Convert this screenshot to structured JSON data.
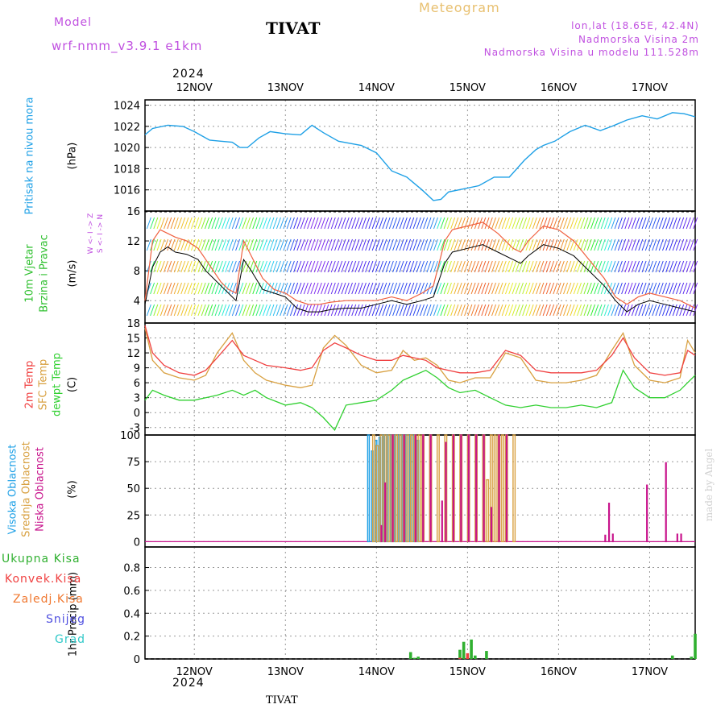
{
  "header": {
    "model_label": "Model",
    "model_name": "wrf-nmm_v3.9.1  e1km",
    "title": "TIVAT",
    "subtitle": "Meteogram",
    "lonlat": "lon,lat (18.65E, 42.4N)",
    "elev": "Nadmorska Visina 2m",
    "model_elev": "Nadmorska Visina u modelu 111.528m",
    "footer": "TIVAT",
    "credit": "made by Angel",
    "year_top": "2024",
    "year_bottom": "2024"
  },
  "colors": {
    "pressure": "#1ea0e6",
    "temp2m": "#f04040",
    "sfc": "#d8a040",
    "dewpt": "#30d030",
    "high_cloud": "#1ea0e6",
    "mid_cloud": "#d8a040",
    "low_cloud": "#c8148c",
    "total_precip": "#30b030",
    "convective": "#f04040",
    "freezing": "#f07830",
    "snow": "#5050e0",
    "hail": "#30c8c8",
    "wind_label": "#30c030",
    "dir_label": "#c050e0"
  },
  "labels": {
    "pressure_title": "Pritisak na nivou mora",
    "pressure_unit": "(hPa)",
    "wind_title1": "10m Vjetar",
    "wind_title2": "Brzina i Pravac",
    "wind_unit": "(m/s)",
    "wind_dirs": "W  <-  I  ->  Z",
    "wind_dirs2": "S  <-  I  ->  N",
    "temp_title1": "2m Temp",
    "temp_title2": "SFC Temp",
    "temp_title3": "dewpt Temp",
    "temp_unit": "(C)",
    "cloud_title1": "Visoka Oblacnost",
    "cloud_title2": "Srednja Oblacnost",
    "cloud_title3": "Niska Oblacnost",
    "cloud_unit": "(%)",
    "precip_title": "1hr Precip (mm)",
    "precip_legend": [
      "Ukupna Kisa",
      "Konvek.Kisa",
      "Zaledj.Kisa",
      "Snijeg",
      "Grad"
    ]
  },
  "chart_data": {
    "type": "meteogram",
    "x_labels": [
      "12NOV",
      "13NOV",
      "14NOV",
      "15NOV",
      "16NOV",
      "17NOV"
    ],
    "x_hours_range": [
      -13,
      132
    ],
    "pressure": {
      "ylabel": "(hPa)",
      "ylim": [
        1014,
        1024.5
      ],
      "ticks": [
        1016,
        1018,
        1020,
        1022,
        1024
      ],
      "hours": [
        -13,
        -11,
        -7,
        -3,
        0,
        4,
        7,
        10,
        12,
        14,
        17,
        20,
        24,
        28,
        31,
        34,
        38,
        44,
        48,
        52,
        56,
        60,
        63,
        65,
        67,
        71,
        75,
        79,
        83,
        87,
        90,
        92,
        95,
        99,
        103,
        107,
        110,
        114,
        118,
        122,
        126,
        129,
        132
      ],
      "values": [
        1021.2,
        1021.8,
        1022.1,
        1022.0,
        1021.5,
        1020.7,
        1020.6,
        1020.5,
        1020.0,
        1020.0,
        1020.9,
        1021.5,
        1021.3,
        1021.2,
        1022.1,
        1021.4,
        1020.6,
        1020.2,
        1019.5,
        1017.8,
        1017.2,
        1016.0,
        1015.0,
        1015.1,
        1015.8,
        1016.1,
        1016.4,
        1017.2,
        1017.2,
        1018.8,
        1019.8,
        1020.2,
        1020.6,
        1021.5,
        1022.1,
        1021.6,
        1022.0,
        1022.6,
        1023.0,
        1022.7,
        1023.3,
        1023.2,
        1022.9
      ]
    },
    "wind": {
      "ylabel": "(m/s)",
      "ylim": [
        1,
        16
      ],
      "ticks": [
        4,
        8,
        12,
        16
      ],
      "hours": [
        -13,
        -11,
        -9,
        -7,
        -5,
        -2,
        1,
        3,
        5,
        7,
        9,
        11,
        13,
        15,
        18,
        21,
        24,
        27,
        30,
        33,
        36,
        40,
        44,
        48,
        52,
        56,
        60,
        63,
        66,
        68,
        72,
        76,
        80,
        84,
        86,
        88,
        92,
        96,
        100,
        104,
        108,
        111,
        114,
        117,
        120,
        124,
        128,
        132
      ],
      "mean": [
        3.5,
        8.5,
        10.5,
        11.2,
        10.5,
        10.2,
        9.5,
        8.0,
        7.0,
        6.0,
        5.0,
        4.0,
        9.5,
        8.0,
        5.5,
        5.0,
        4.5,
        3.0,
        2.5,
        2.5,
        2.8,
        3.0,
        3.0,
        3.5,
        4.0,
        3.5,
        4.0,
        4.5,
        9.0,
        10.5,
        11.0,
        11.5,
        10.5,
        9.5,
        9.0,
        10.0,
        11.5,
        11.0,
        10.0,
        8.0,
        6.0,
        4.0,
        2.5,
        3.5,
        4.0,
        3.5,
        3.0,
        2.5
      ],
      "gust": [
        4.0,
        12.0,
        13.5,
        13.0,
        12.5,
        12.0,
        11.0,
        9.5,
        8.0,
        6.5,
        5.5,
        5.0,
        12.0,
        10.0,
        7.0,
        5.5,
        5.0,
        4.0,
        3.5,
        3.5,
        3.8,
        4.0,
        4.0,
        4.0,
        4.5,
        4.0,
        5.0,
        6.0,
        12.0,
        13.5,
        14.0,
        14.5,
        13.0,
        11.0,
        10.5,
        12.0,
        14.0,
        13.5,
        12.0,
        9.5,
        7.0,
        4.5,
        3.5,
        4.5,
        5.0,
        4.5,
        4.0,
        3.0
      ]
    },
    "temperature": {
      "ylabel": "(C)",
      "ylim": [
        -4.5,
        18
      ],
      "ticks": [
        -3,
        0,
        3,
        6,
        9,
        12,
        15,
        18
      ],
      "hours": [
        -13,
        -11,
        -8,
        -4,
        0,
        3,
        6,
        10,
        13,
        16,
        19,
        24,
        28,
        31,
        34,
        37,
        40,
        44,
        48,
        52,
        55,
        58,
        61,
        64,
        67,
        70,
        74,
        78,
        82,
        86,
        90,
        94,
        98,
        102,
        106,
        110,
        113,
        116,
        120,
        124,
        128,
        130,
        132
      ],
      "t2m": [
        17.5,
        12.0,
        9.5,
        8.0,
        7.5,
        8.5,
        11.0,
        14.5,
        11.5,
        10.5,
        9.5,
        9.0,
        8.5,
        9.0,
        12.5,
        14.0,
        13.0,
        11.5,
        10.5,
        10.5,
        11.5,
        11.0,
        10.5,
        9.0,
        8.5,
        8.0,
        8.0,
        8.5,
        12.5,
        11.5,
        8.5,
        8.0,
        8.0,
        8.0,
        8.5,
        11.5,
        15.0,
        11.0,
        8.0,
        7.5,
        8.0,
        12.5,
        11.5
      ],
      "sfc": [
        17.0,
        10.5,
        8.0,
        7.0,
        6.5,
        7.5,
        12.0,
        16.0,
        10.5,
        8.0,
        6.5,
        5.5,
        5.0,
        5.5,
        13.0,
        15.5,
        13.5,
        9.5,
        8.0,
        8.5,
        12.5,
        10.5,
        11.0,
        9.5,
        6.5,
        6.0,
        7.0,
        7.0,
        12.0,
        11.0,
        6.5,
        6.0,
        6.0,
        6.5,
        7.5,
        12.5,
        16.0,
        9.5,
        6.5,
        6.0,
        7.0,
        14.5,
        12.0
      ],
      "dewpt": [
        2.5,
        4.5,
        3.5,
        2.5,
        2.5,
        3.0,
        3.5,
        4.5,
        3.5,
        4.5,
        3.0,
        1.5,
        2.0,
        1.0,
        -1.0,
        -3.5,
        1.5,
        2.0,
        2.5,
        4.5,
        6.5,
        7.5,
        8.5,
        7.0,
        5.0,
        4.0,
        4.5,
        3.0,
        1.5,
        1.0,
        1.5,
        1.0,
        1.0,
        1.5,
        1.0,
        2.0,
        8.5,
        5.0,
        3.0,
        3.0,
        4.5,
        6.0,
        7.5
      ]
    },
    "clouds": {
      "ylabel": "(%)",
      "ylim": [
        -5,
        100
      ],
      "ticks": [
        0,
        25,
        50,
        75,
        100
      ],
      "high": [
        [
          46,
          100
        ],
        [
          47,
          85
        ],
        [
          48,
          95
        ],
        [
          49,
          98
        ],
        [
          50,
          100
        ],
        [
          51,
          100
        ],
        [
          52,
          100
        ],
        [
          53,
          100
        ],
        [
          54,
          100
        ],
        [
          55,
          100
        ],
        [
          56,
          100
        ],
        [
          57,
          100
        ],
        [
          58,
          100
        ],
        [
          59,
          95
        ]
      ],
      "mid": [
        [
          47,
          100
        ],
        [
          48,
          90
        ],
        [
          49,
          100
        ],
        [
          50,
          100
        ],
        [
          51,
          100
        ],
        [
          52,
          100
        ],
        [
          53,
          100
        ],
        [
          54,
          100
        ],
        [
          55,
          100
        ],
        [
          56,
          100
        ],
        [
          57,
          100
        ],
        [
          58,
          100
        ],
        [
          59,
          100
        ],
        [
          60,
          100
        ],
        [
          62,
          100
        ],
        [
          64,
          100
        ],
        [
          66,
          100
        ],
        [
          68,
          100
        ],
        [
          70,
          100
        ],
        [
          72,
          100
        ],
        [
          74,
          100
        ],
        [
          76,
          100
        ],
        [
          77,
          58
        ],
        [
          78,
          100
        ],
        [
          79,
          100
        ],
        [
          80,
          100
        ],
        [
          81,
          100
        ],
        [
          82,
          100
        ],
        [
          84,
          100
        ]
      ],
      "low": [
        [
          49,
          15
        ],
        [
          50,
          55
        ],
        [
          52,
          100
        ],
        [
          55,
          100
        ],
        [
          58,
          100
        ],
        [
          60,
          100
        ],
        [
          62,
          100
        ],
        [
          65,
          38
        ],
        [
          66,
          93
        ],
        [
          68,
          100
        ],
        [
          70,
          100
        ],
        [
          72,
          100
        ],
        [
          74,
          100
        ],
        [
          76,
          100
        ],
        [
          78,
          32
        ],
        [
          80,
          100
        ],
        [
          82,
          100
        ],
        [
          108,
          6
        ],
        [
          109,
          36
        ],
        [
          110,
          7
        ],
        [
          119,
          53
        ],
        [
          124,
          74
        ],
        [
          127,
          7
        ],
        [
          128,
          7
        ]
      ]
    },
    "precip": {
      "ylabel": "1hr Precip (mm)",
      "ylim": [
        0,
        0.98
      ],
      "ticks": [
        0,
        0.2,
        0.4,
        0.6,
        0.8
      ],
      "total": [
        [
          57,
          0.06
        ],
        [
          58,
          0.01
        ],
        [
          59,
          0.02
        ],
        [
          70,
          0.08
        ],
        [
          71,
          0.15
        ],
        [
          72,
          0.02
        ],
        [
          73,
          0.17
        ],
        [
          74,
          0.03
        ],
        [
          77,
          0.07
        ],
        [
          126,
          0.03
        ],
        [
          131,
          0.02
        ],
        [
          132,
          0.22
        ]
      ],
      "convective": [
        [
          70,
          0.01
        ],
        [
          72,
          0.05
        ]
      ]
    }
  }
}
